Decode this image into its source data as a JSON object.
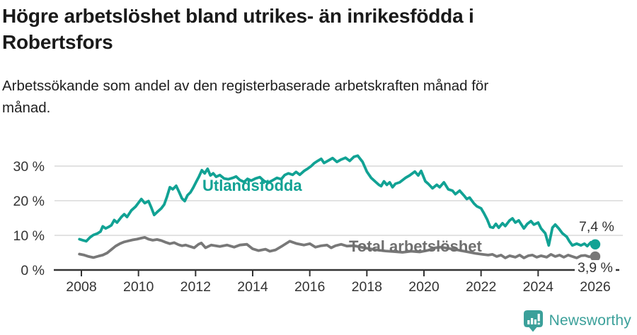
{
  "header": {
    "title_line1": "Högre arbetslöshet bland utrikes- än inrikesfödda i",
    "title_line2": "Robertsfors",
    "subtitle_line1": "Arbetssökande som andel av den registerbaserade arbetskraften månad för",
    "subtitle_line2": "månad."
  },
  "footer": {
    "brand": "Newsworthy",
    "brand_color": "#3ba09a"
  },
  "colors": {
    "axis_text": "#333333",
    "gridline": "#d9d9d9",
    "axis_line": "#333333"
  },
  "chart_data": {
    "type": "line",
    "title": "Högre arbetslöshet bland utrikes- än inrikesfödda i Robertsfors",
    "subtitle": "Arbetssökande som andel av den registerbaserade arbetskraften månad för månad.",
    "unit": "%",
    "grid": "horizontal",
    "legend": "inline-labels",
    "x_axis": {
      "ticks": [
        2008,
        2010,
        2012,
        2014,
        2016,
        2018,
        2020,
        2022,
        2024,
        2026
      ],
      "range": [
        2007.9,
        2026.2
      ]
    },
    "y_axis": {
      "ticks": [
        0,
        10,
        20,
        30
      ],
      "tick_labels": [
        "0 %",
        "10 %",
        "20 %",
        "30 %"
      ],
      "range": [
        0,
        35
      ]
    },
    "series": [
      {
        "name": "Utlandsfödda",
        "color": "#11a294",
        "label_color": "#11a294",
        "end_label": "7,4 %",
        "end_value": 7.4,
        "points": [
          [
            2007.93,
            8.9
          ],
          [
            2008.05,
            8.6
          ],
          [
            2008.17,
            8.3
          ],
          [
            2008.3,
            9.4
          ],
          [
            2008.42,
            10.1
          ],
          [
            2008.55,
            10.5
          ],
          [
            2008.67,
            11.1
          ],
          [
            2008.75,
            12.6
          ],
          [
            2008.85,
            12.0
          ],
          [
            2008.95,
            12.4
          ],
          [
            2009.05,
            12.9
          ],
          [
            2009.15,
            14.4
          ],
          [
            2009.25,
            13.7
          ],
          [
            2009.4,
            15.3
          ],
          [
            2009.5,
            16.1
          ],
          [
            2009.6,
            15.3
          ],
          [
            2009.75,
            17.2
          ],
          [
            2009.9,
            18.3
          ],
          [
            2010.0,
            19.4
          ],
          [
            2010.1,
            20.5
          ],
          [
            2010.22,
            19.3
          ],
          [
            2010.35,
            19.9
          ],
          [
            2010.45,
            18.0
          ],
          [
            2010.55,
            15.9
          ],
          [
            2010.65,
            16.7
          ],
          [
            2010.8,
            17.8
          ],
          [
            2010.9,
            18.9
          ],
          [
            2011.0,
            21.2
          ],
          [
            2011.1,
            23.9
          ],
          [
            2011.2,
            23.3
          ],
          [
            2011.32,
            24.3
          ],
          [
            2011.42,
            22.6
          ],
          [
            2011.52,
            20.7
          ],
          [
            2011.62,
            19.9
          ],
          [
            2011.72,
            21.6
          ],
          [
            2011.82,
            22.4
          ],
          [
            2011.92,
            23.8
          ],
          [
            2012.02,
            25.4
          ],
          [
            2012.12,
            27.0
          ],
          [
            2012.22,
            28.8
          ],
          [
            2012.32,
            27.9
          ],
          [
            2012.42,
            29.2
          ],
          [
            2012.52,
            27.3
          ],
          [
            2012.62,
            27.9
          ],
          [
            2012.72,
            26.9
          ],
          [
            2012.85,
            27.4
          ],
          [
            2013.0,
            26.4
          ],
          [
            2013.15,
            26.2
          ],
          [
            2013.3,
            26.6
          ],
          [
            2013.42,
            27.0
          ],
          [
            2013.55,
            26.0
          ],
          [
            2013.7,
            25.4
          ],
          [
            2013.82,
            26.3
          ],
          [
            2013.95,
            25.8
          ],
          [
            2014.1,
            26.4
          ],
          [
            2014.25,
            26.8
          ],
          [
            2014.4,
            25.7
          ],
          [
            2014.55,
            25.2
          ],
          [
            2014.7,
            25.9
          ],
          [
            2014.85,
            26.6
          ],
          [
            2015.0,
            26.2
          ],
          [
            2015.12,
            27.4
          ],
          [
            2015.25,
            27.9
          ],
          [
            2015.4,
            27.5
          ],
          [
            2015.52,
            28.3
          ],
          [
            2015.65,
            27.5
          ],
          [
            2015.8,
            28.6
          ],
          [
            2015.92,
            29.2
          ],
          [
            2016.05,
            30.0
          ],
          [
            2016.15,
            30.8
          ],
          [
            2016.28,
            31.5
          ],
          [
            2016.4,
            32.1
          ],
          [
            2016.5,
            30.9
          ],
          [
            2016.65,
            31.6
          ],
          [
            2016.8,
            32.3
          ],
          [
            2016.95,
            31.2
          ],
          [
            2017.1,
            31.9
          ],
          [
            2017.25,
            32.4
          ],
          [
            2017.4,
            31.5
          ],
          [
            2017.55,
            32.7
          ],
          [
            2017.68,
            33.0
          ],
          [
            2017.85,
            31.2
          ],
          [
            2018.0,
            28.4
          ],
          [
            2018.15,
            26.6
          ],
          [
            2018.3,
            25.5
          ],
          [
            2018.42,
            24.6
          ],
          [
            2018.5,
            24.2
          ],
          [
            2018.6,
            25.6
          ],
          [
            2018.7,
            24.6
          ],
          [
            2018.8,
            25.3
          ],
          [
            2018.9,
            23.9
          ],
          [
            2019.0,
            24.9
          ],
          [
            2019.15,
            25.3
          ],
          [
            2019.35,
            26.6
          ],
          [
            2019.5,
            27.3
          ],
          [
            2019.68,
            28.4
          ],
          [
            2019.8,
            27.3
          ],
          [
            2019.9,
            28.6
          ],
          [
            2020.05,
            25.6
          ],
          [
            2020.15,
            24.9
          ],
          [
            2020.3,
            23.6
          ],
          [
            2020.45,
            24.6
          ],
          [
            2020.55,
            23.9
          ],
          [
            2020.7,
            25.3
          ],
          [
            2020.85,
            23.3
          ],
          [
            2021.0,
            22.9
          ],
          [
            2021.1,
            21.9
          ],
          [
            2021.25,
            22.9
          ],
          [
            2021.4,
            21.5
          ],
          [
            2021.5,
            20.5
          ],
          [
            2021.6,
            20.9
          ],
          [
            2021.75,
            19.2
          ],
          [
            2021.85,
            18.4
          ],
          [
            2022.0,
            17.8
          ],
          [
            2022.1,
            16.4
          ],
          [
            2022.22,
            14.5
          ],
          [
            2022.32,
            12.4
          ],
          [
            2022.42,
            12.2
          ],
          [
            2022.52,
            13.3
          ],
          [
            2022.62,
            12.2
          ],
          [
            2022.75,
            13.5
          ],
          [
            2022.85,
            12.7
          ],
          [
            2023.0,
            14.3
          ],
          [
            2023.1,
            14.9
          ],
          [
            2023.2,
            13.7
          ],
          [
            2023.32,
            14.3
          ],
          [
            2023.5,
            12.0
          ],
          [
            2023.62,
            13.3
          ],
          [
            2023.75,
            14.1
          ],
          [
            2023.85,
            13.1
          ],
          [
            2024.0,
            13.7
          ],
          [
            2024.1,
            12.0
          ],
          [
            2024.25,
            10.6
          ],
          [
            2024.37,
            7.1
          ],
          [
            2024.5,
            12.2
          ],
          [
            2024.6,
            13.1
          ],
          [
            2024.72,
            12.0
          ],
          [
            2024.85,
            10.6
          ],
          [
            2025.0,
            9.6
          ],
          [
            2025.1,
            8.2
          ],
          [
            2025.2,
            7.1
          ],
          [
            2025.35,
            7.6
          ],
          [
            2025.5,
            7.1
          ],
          [
            2025.62,
            7.6
          ],
          [
            2025.72,
            6.9
          ],
          [
            2025.85,
            8.0
          ],
          [
            2026.0,
            7.4
          ]
        ]
      },
      {
        "name": "Total arbetslöshet",
        "color": "#787878",
        "label_color": "#6f6f6f",
        "end_label": "3,9 %",
        "end_value": 3.9,
        "points": [
          [
            2007.93,
            4.6
          ],
          [
            2008.1,
            4.3
          ],
          [
            2008.25,
            3.9
          ],
          [
            2008.42,
            3.6
          ],
          [
            2008.6,
            4.0
          ],
          [
            2008.75,
            4.3
          ],
          [
            2008.9,
            4.9
          ],
          [
            2009.05,
            5.9
          ],
          [
            2009.2,
            6.9
          ],
          [
            2009.35,
            7.6
          ],
          [
            2009.5,
            8.1
          ],
          [
            2009.65,
            8.4
          ],
          [
            2009.8,
            8.7
          ],
          [
            2009.95,
            8.9
          ],
          [
            2010.1,
            9.2
          ],
          [
            2010.22,
            9.4
          ],
          [
            2010.35,
            8.9
          ],
          [
            2010.5,
            8.6
          ],
          [
            2010.65,
            8.8
          ],
          [
            2010.8,
            8.5
          ],
          [
            2010.95,
            8.0
          ],
          [
            2011.1,
            7.6
          ],
          [
            2011.25,
            7.9
          ],
          [
            2011.4,
            7.3
          ],
          [
            2011.52,
            7.0
          ],
          [
            2011.65,
            7.2
          ],
          [
            2011.8,
            6.8
          ],
          [
            2011.95,
            6.4
          ],
          [
            2012.1,
            7.4
          ],
          [
            2012.2,
            7.8
          ],
          [
            2012.35,
            6.4
          ],
          [
            2012.55,
            7.2
          ],
          [
            2012.85,
            6.8
          ],
          [
            2013.1,
            7.2
          ],
          [
            2013.35,
            6.6
          ],
          [
            2013.55,
            7.2
          ],
          [
            2013.8,
            7.4
          ],
          [
            2014.0,
            6.1
          ],
          [
            2014.2,
            5.6
          ],
          [
            2014.45,
            6.0
          ],
          [
            2014.6,
            5.4
          ],
          [
            2014.8,
            5.8
          ],
          [
            2015.05,
            7.0
          ],
          [
            2015.3,
            8.3
          ],
          [
            2015.55,
            7.6
          ],
          [
            2015.8,
            7.2
          ],
          [
            2016.0,
            7.6
          ],
          [
            2016.2,
            6.6
          ],
          [
            2016.4,
            7.0
          ],
          [
            2016.6,
            7.2
          ],
          [
            2016.75,
            6.4
          ],
          [
            2016.9,
            7.0
          ],
          [
            2017.1,
            7.4
          ],
          [
            2017.3,
            6.9
          ],
          [
            2017.55,
            7.0
          ],
          [
            2017.8,
            6.6
          ],
          [
            2018.05,
            6.2
          ],
          [
            2018.35,
            5.8
          ],
          [
            2018.65,
            5.5
          ],
          [
            2018.95,
            5.3
          ],
          [
            2019.25,
            5.1
          ],
          [
            2019.55,
            5.4
          ],
          [
            2019.85,
            5.2
          ],
          [
            2020.15,
            5.7
          ],
          [
            2020.4,
            6.4
          ],
          [
            2020.6,
            6.6
          ],
          [
            2020.8,
            6.3
          ],
          [
            2021.05,
            6.0
          ],
          [
            2021.3,
            5.6
          ],
          [
            2021.55,
            5.2
          ],
          [
            2021.8,
            4.8
          ],
          [
            2022.05,
            4.5
          ],
          [
            2022.25,
            4.3
          ],
          [
            2022.4,
            4.5
          ],
          [
            2022.55,
            3.9
          ],
          [
            2022.7,
            4.3
          ],
          [
            2022.85,
            3.5
          ],
          [
            2023.0,
            4.1
          ],
          [
            2023.2,
            3.7
          ],
          [
            2023.35,
            4.3
          ],
          [
            2023.5,
            3.5
          ],
          [
            2023.65,
            4.1
          ],
          [
            2023.8,
            4.3
          ],
          [
            2023.95,
            3.7
          ],
          [
            2024.1,
            4.1
          ],
          [
            2024.3,
            3.7
          ],
          [
            2024.45,
            4.5
          ],
          [
            2024.6,
            3.9
          ],
          [
            2024.75,
            4.3
          ],
          [
            2024.9,
            3.7
          ],
          [
            2025.05,
            4.3
          ],
          [
            2025.2,
            3.9
          ],
          [
            2025.35,
            3.5
          ],
          [
            2025.5,
            4.1
          ],
          [
            2025.65,
            4.2
          ],
          [
            2025.8,
            3.8
          ],
          [
            2025.9,
            4.1
          ],
          [
            2026.0,
            3.9
          ]
        ]
      }
    ]
  }
}
